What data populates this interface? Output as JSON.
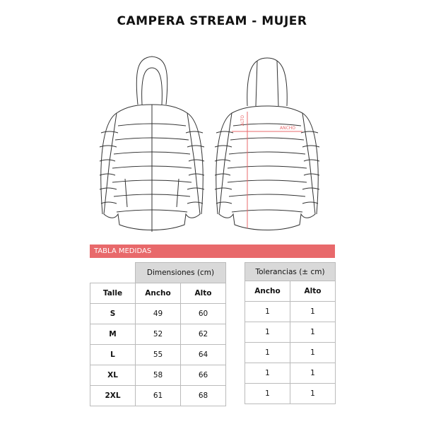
{
  "title": "CAMPERA STREAM - MUJER",
  "diagram": {
    "alto_label": "ALTO",
    "ancho_label": "ANCHO",
    "measure_color": "#e8696b"
  },
  "section_label": "TABLA MEDIDAS",
  "dimensions": {
    "group": "Dimensiones (cm)",
    "headers": [
      "Talle",
      "Ancho",
      "Alto"
    ],
    "rows": [
      [
        "S",
        "49",
        "60"
      ],
      [
        "M",
        "52",
        "62"
      ],
      [
        "L",
        "55",
        "64"
      ],
      [
        "XL",
        "58",
        "66"
      ],
      [
        "2XL",
        "61",
        "68"
      ]
    ]
  },
  "tolerances": {
    "group": "Tolerancias (± cm)",
    "headers": [
      "Ancho",
      "Alto"
    ],
    "rows": [
      [
        "1",
        "1"
      ],
      [
        "1",
        "1"
      ],
      [
        "1",
        "1"
      ],
      [
        "1",
        "1"
      ],
      [
        "1",
        "1"
      ]
    ]
  }
}
